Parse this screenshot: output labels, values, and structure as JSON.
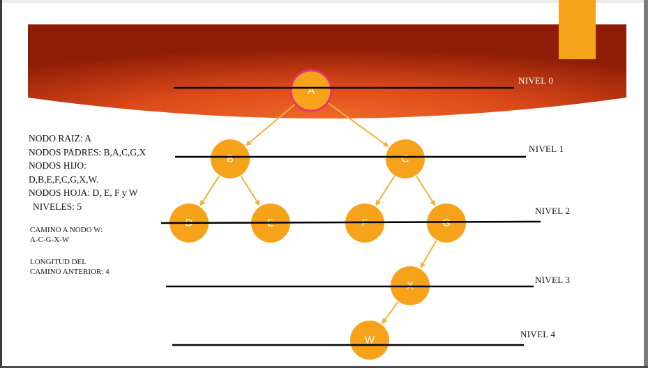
{
  "diagram": {
    "type": "tree",
    "nodes": [
      {
        "id": "A",
        "label": "A",
        "level": 0
      },
      {
        "id": "B",
        "label": "B",
        "level": 1
      },
      {
        "id": "C",
        "label": "C",
        "level": 1
      },
      {
        "id": "D",
        "label": "D",
        "level": 2
      },
      {
        "id": "E",
        "label": "E",
        "level": 2
      },
      {
        "id": "F",
        "label": "F",
        "level": 2
      },
      {
        "id": "G",
        "label": "G",
        "level": 2
      },
      {
        "id": "X",
        "label": "X",
        "level": 3
      },
      {
        "id": "W",
        "label": "W",
        "level": 4
      }
    ],
    "edges": [
      {
        "from": "A",
        "to": "B"
      },
      {
        "from": "A",
        "to": "C"
      },
      {
        "from": "B",
        "to": "D"
      },
      {
        "from": "B",
        "to": "E"
      },
      {
        "from": "C",
        "to": "F"
      },
      {
        "from": "C",
        "to": "G"
      },
      {
        "from": "G",
        "to": "X"
      },
      {
        "from": "X",
        "to": "W"
      }
    ],
    "levels": [
      "NIVEL 0",
      "NIVEL 1",
      "NIVEL 2",
      "NIVEL 3",
      "NIVEL 4"
    ]
  },
  "info": {
    "root": "NODO RAIZ: A",
    "parents": "NODOS PADRES: B,A,C,G,X",
    "children_label": "NODOS HIJO:",
    "children_values": "D,B,E,F,C,G,X,W.",
    "leaves": "NODOS HOJA: D, E, F y W",
    "levels_count": "NIVELES: 5",
    "path_label": "CAMINO A NODO W:",
    "path_value": "A-C-G-X-W",
    "length_label": "LONGITUD DEL",
    "length_value": "CAMINO ANTERIOR: 4"
  },
  "colors": {
    "node_fill": "#f7a21b",
    "root_stroke": "#e8336b",
    "edge": "#f2b13a",
    "banner_center": "#e4571f",
    "banner_edge": "#8e1c06",
    "accent": "#f7a21b"
  }
}
